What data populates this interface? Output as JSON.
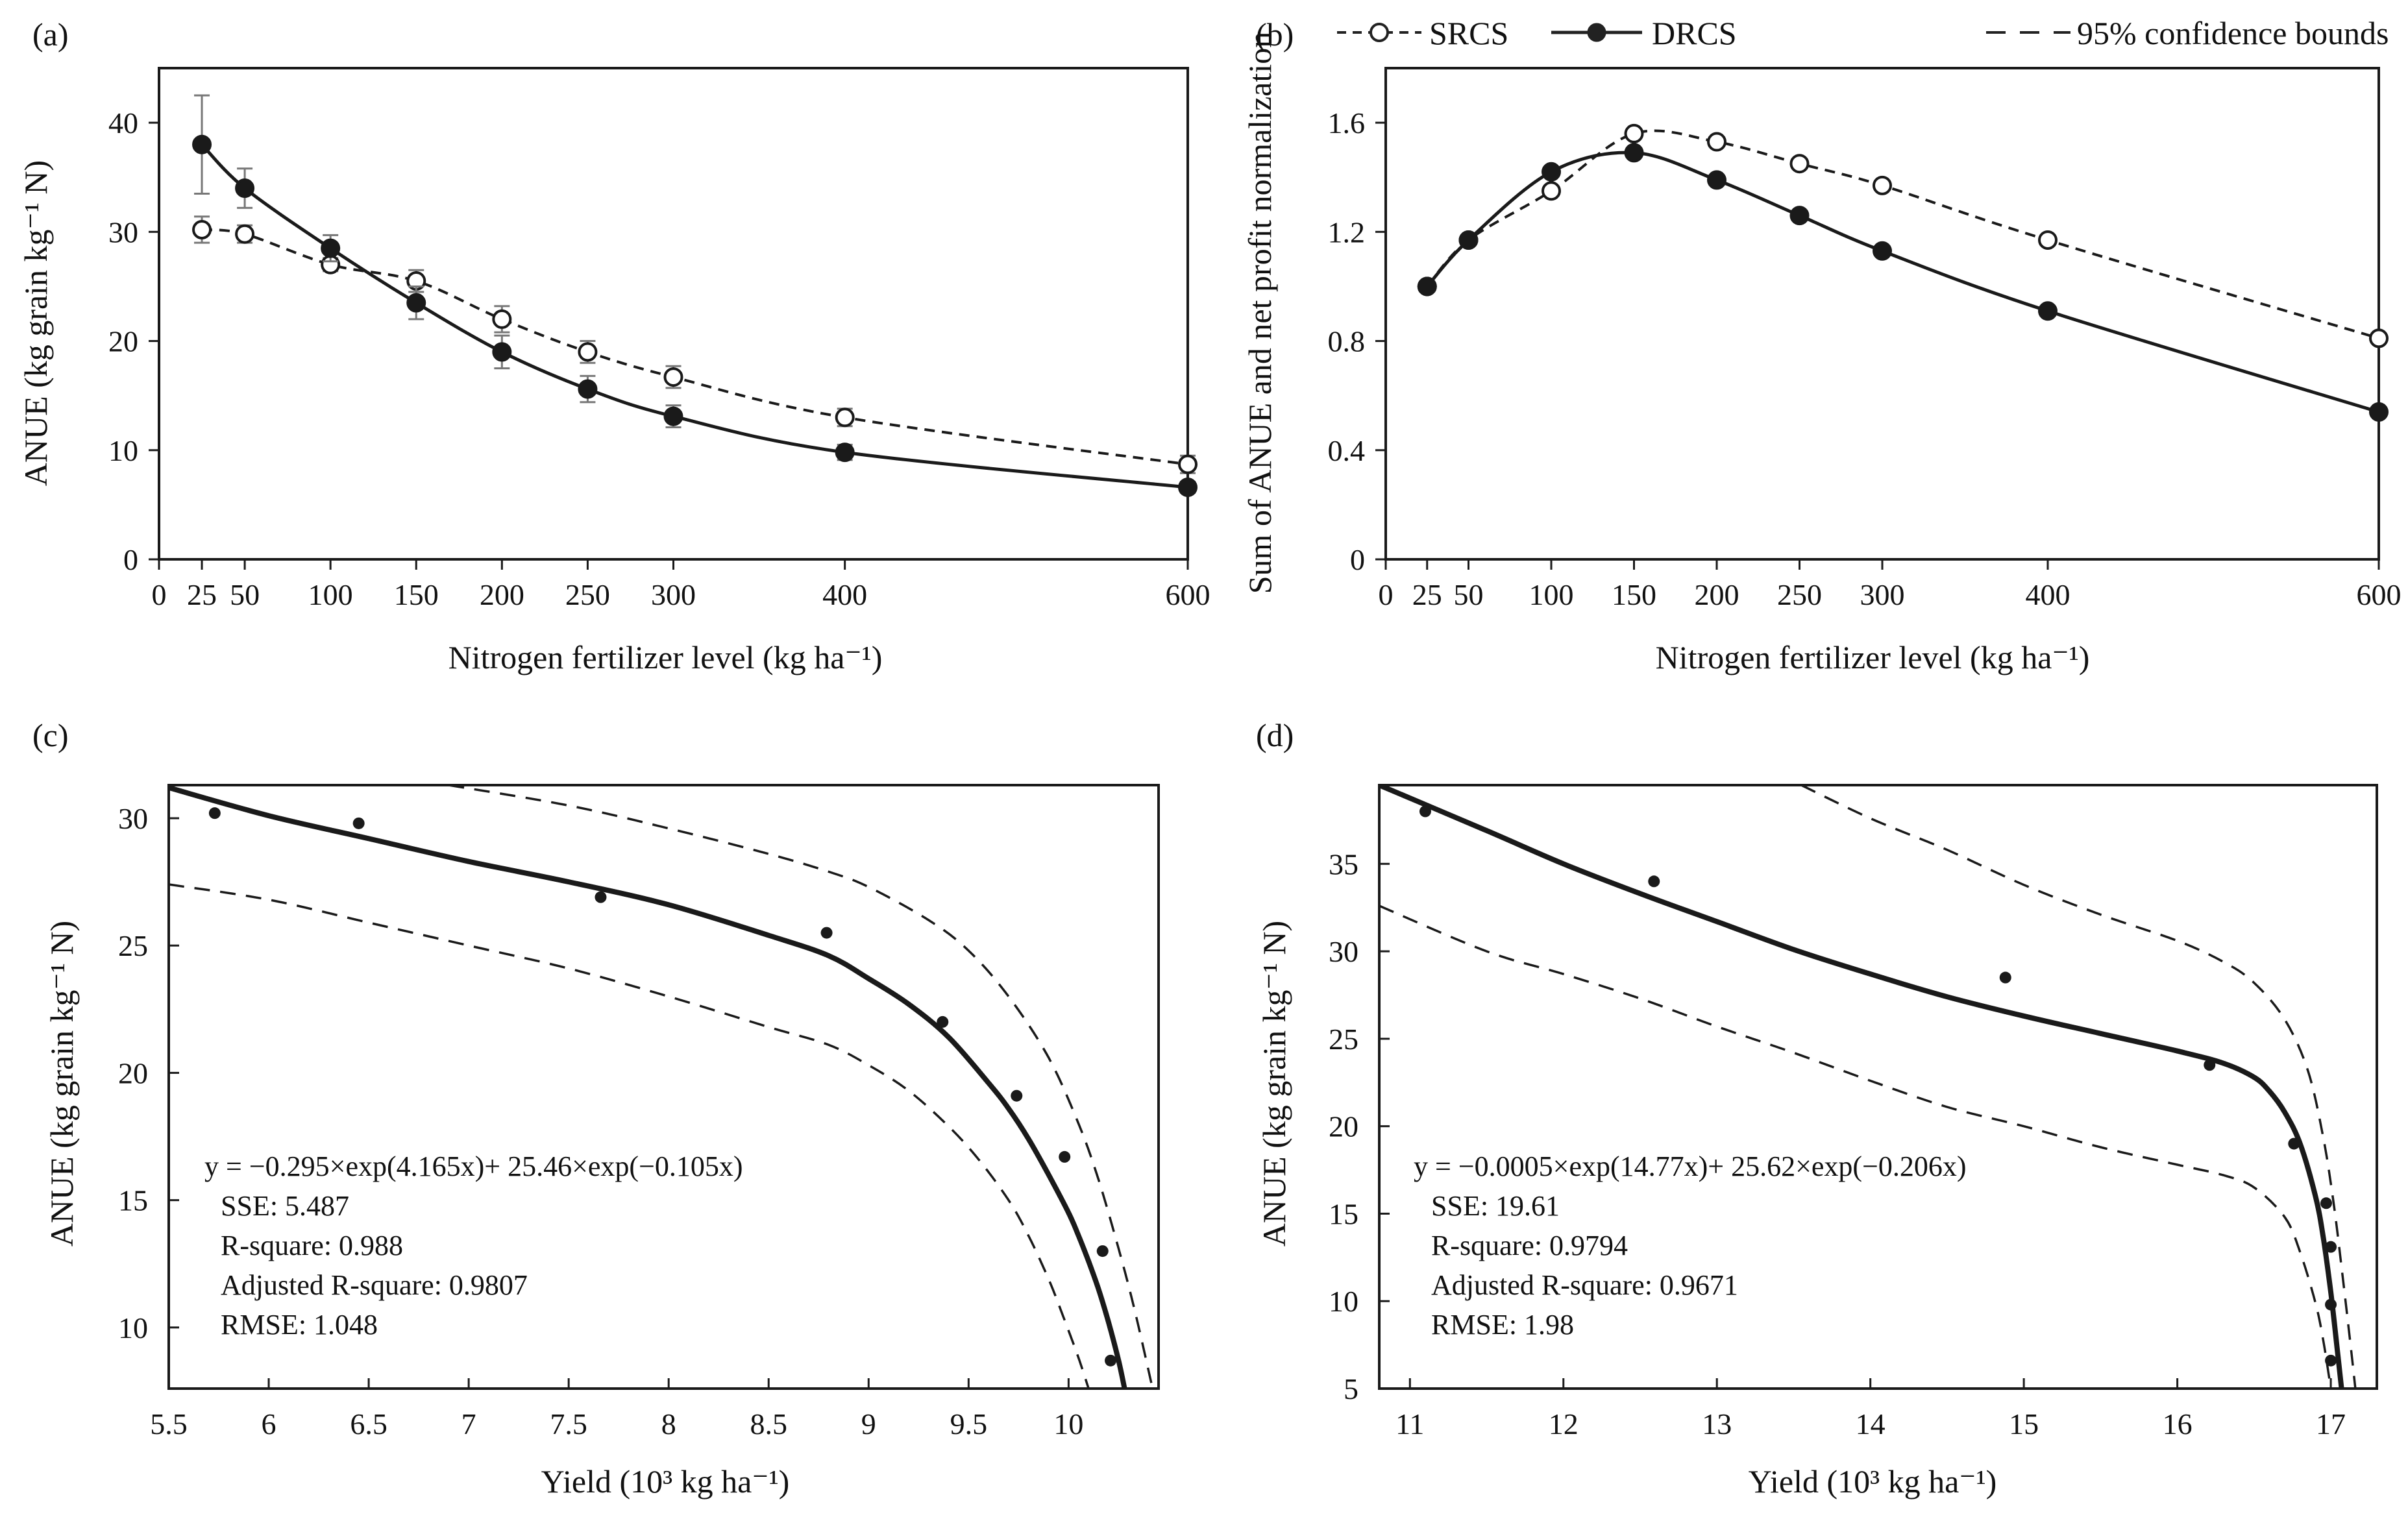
{
  "legend": {
    "srcs": "SRCS",
    "drcs": "DRCS",
    "bounds": "95% confidence bounds"
  },
  "chart_data": [
    {
      "id": "a",
      "panel_label": "(a)",
      "type": "line",
      "xlabel": "Nitrogen fertilizer level (kg ha⁻¹)",
      "ylabel": "ANUE (kg grain kg⁻¹ N)",
      "xlim": [
        0,
        600
      ],
      "ylim": [
        0,
        45
      ],
      "xticks": [
        0,
        25,
        50,
        100,
        150,
        200,
        250,
        300,
        400,
        600
      ],
      "xtick_labels": [
        "0",
        "25",
        "50",
        "100",
        "150",
        "200",
        "250",
        "300",
        "400",
        "600"
      ],
      "yticks": [
        0,
        10,
        20,
        30,
        40
      ],
      "x": [
        25,
        50,
        100,
        150,
        200,
        250,
        300,
        400,
        600
      ],
      "series": [
        {
          "name": "SRCS",
          "marker": "open-circle",
          "dash": true,
          "values": [
            30.2,
            29.8,
            27.0,
            25.5,
            22.0,
            19.0,
            16.7,
            13.0,
            8.7
          ],
          "errors": [
            1.2,
            0.8,
            0.6,
            1.0,
            1.2,
            1.0,
            1.0,
            0.8,
            0.8
          ]
        },
        {
          "name": "DRCS",
          "marker": "filled-circle",
          "dash": false,
          "values": [
            38.0,
            34.0,
            28.5,
            23.5,
            19.0,
            15.6,
            13.1,
            9.8,
            6.6
          ],
          "errors": [
            4.5,
            1.8,
            1.2,
            1.5,
            1.5,
            1.2,
            1.0,
            0.7,
            0.5
          ]
        }
      ]
    },
    {
      "id": "b",
      "panel_label": "(b)",
      "type": "line",
      "xlabel": "Nitrogen fertilizer level (kg  ha⁻¹)",
      "ylabel": "Sum of ANUE and net profit normalization",
      "xlim": [
        0,
        600
      ],
      "ylim": [
        0,
        1.8
      ],
      "xticks": [
        0,
        25,
        50,
        100,
        150,
        200,
        250,
        300,
        400,
        600
      ],
      "xtick_labels": [
        "0",
        "25",
        "50",
        "100",
        "150",
        "200",
        "250",
        "300",
        "400",
        "600"
      ],
      "yticks": [
        0,
        0.4,
        0.8,
        1.2,
        1.6
      ],
      "ytick_labels": [
        "0",
        "0.4",
        "0.8",
        "1.2",
        "1.6"
      ],
      "x": [
        25,
        50,
        100,
        150,
        200,
        250,
        300,
        400,
        600
      ],
      "series": [
        {
          "name": "SRCS",
          "marker": "open-circle",
          "dash": true,
          "values": [
            1.0,
            1.17,
            1.35,
            1.56,
            1.53,
            1.45,
            1.37,
            1.17,
            0.81
          ]
        },
        {
          "name": "DRCS",
          "marker": "filled-circle",
          "dash": false,
          "values": [
            1.0,
            1.17,
            1.42,
            1.49,
            1.39,
            1.26,
            1.13,
            0.91,
            0.54
          ]
        }
      ]
    },
    {
      "id": "c",
      "panel_label": "(c)",
      "type": "scatter",
      "xlabel": "Yield (10³ kg ha⁻¹)",
      "ylabel": "ANUE (kg grain kg⁻¹ N)",
      "xlim": [
        5.5,
        10.45
      ],
      "ylim": [
        7.6,
        31.3
      ],
      "xticks": [
        5.5,
        6,
        6.5,
        7,
        7.5,
        8,
        8.5,
        9,
        9.5,
        10
      ],
      "xtick_labels": [
        "5.5",
        "6",
        "6.5",
        "7",
        "7.5",
        "8",
        "8.5",
        "9",
        "9.5",
        "10"
      ],
      "yticks": [
        10,
        15,
        20,
        25,
        30
      ],
      "points_x": [
        5.73,
        6.45,
        7.66,
        8.79,
        9.37,
        9.74,
        9.98,
        10.17,
        10.21
      ],
      "points_y": [
        30.2,
        29.8,
        26.9,
        25.5,
        22.0,
        19.1,
        16.7,
        13.0,
        8.7
      ],
      "fit": {
        "a": -0.295,
        "b": 4.165,
        "c": 25.46,
        "d": -0.105,
        "x": [
          5.5,
          6.0,
          6.5,
          7.0,
          7.5,
          8.0,
          8.5,
          8.8,
          9.0,
          9.2,
          9.4,
          9.6,
          9.7,
          9.8,
          9.9,
          10.0,
          10.05,
          10.1,
          10.15,
          10.2,
          10.25,
          10.28
        ],
        "y": [
          31.2,
          30.1,
          29.2,
          28.3,
          27.5,
          26.6,
          25.4,
          24.6,
          23.7,
          22.7,
          21.4,
          19.6,
          18.6,
          17.4,
          16.0,
          14.5,
          13.6,
          12.6,
          11.5,
          10.2,
          8.7,
          7.6
        ]
      },
      "lower_bound": {
        "x": [
          5.5,
          6.0,
          6.5,
          7.0,
          7.5,
          8.0,
          8.5,
          8.8,
          9.0,
          9.2,
          9.4,
          9.55,
          9.7,
          9.8,
          9.9,
          9.97,
          10.05,
          10.1
        ],
        "y": [
          27.4,
          26.8,
          25.9,
          25.0,
          24.1,
          23.0,
          21.8,
          21.1,
          20.3,
          19.3,
          17.9,
          16.6,
          15.0,
          13.6,
          11.9,
          10.5,
          8.8,
          7.6
        ]
      },
      "upper_bound": {
        "x": [
          6.9,
          7.5,
          8.0,
          8.5,
          8.8,
          9.0,
          9.3,
          9.5,
          9.7,
          9.9,
          10.05,
          10.15,
          10.25,
          10.33,
          10.42
        ],
        "y": [
          31.3,
          30.5,
          29.6,
          28.6,
          27.9,
          27.3,
          26.0,
          24.8,
          23.0,
          20.6,
          18.0,
          15.8,
          13.1,
          10.7,
          7.6
        ]
      },
      "annotations": [
        "y = −0.295×exp(4.165x)+ 25.46×exp(−0.105x)",
        "SSE: 5.487",
        "R-square: 0.988",
        "Adjusted R-square: 0.9807",
        "RMSE: 1.048"
      ]
    },
    {
      "id": "d",
      "panel_label": "(d)",
      "type": "scatter",
      "xlabel": "Yield (10³ kg ha⁻¹)",
      "ylabel": "ANUE (kg grain kg⁻¹ N)",
      "xlim": [
        10.8,
        17.3
      ],
      "ylim": [
        5,
        39.5
      ],
      "xticks": [
        11,
        12,
        13,
        14,
        15,
        16,
        17
      ],
      "xtick_labels": [
        "11",
        "12",
        "13",
        "14",
        "15",
        "16",
        "17"
      ],
      "yticks": [
        5,
        10,
        15,
        20,
        25,
        30,
        35
      ],
      "points_x": [
        11.1,
        12.59,
        14.88,
        16.21,
        16.76,
        16.97,
        17.0,
        17.0,
        17.0
      ],
      "points_y": [
        38.0,
        34.0,
        28.5,
        23.5,
        19.0,
        15.6,
        13.1,
        9.8,
        6.6
      ],
      "fit": {
        "a": -0.0005,
        "b": 14.77,
        "c": 25.62,
        "d": -0.206,
        "x": [
          10.8,
          11.5,
          12.0,
          12.5,
          13.0,
          13.5,
          14.0,
          14.5,
          15.0,
          15.5,
          16.0,
          16.3,
          16.5,
          16.6,
          16.7,
          16.8,
          16.9,
          16.95,
          17.0,
          17.04,
          17.07
        ],
        "y": [
          39.5,
          36.9,
          35.0,
          33.3,
          31.7,
          30.1,
          28.7,
          27.4,
          26.3,
          25.3,
          24.3,
          23.6,
          22.8,
          22.0,
          20.8,
          19.0,
          16.0,
          13.7,
          10.5,
          7.4,
          5.0
        ]
      },
      "lower_bound": {
        "x": [
          10.8,
          11.5,
          12.0,
          12.5,
          13.0,
          13.5,
          14.0,
          14.5,
          15.0,
          15.5,
          16.0,
          16.3,
          16.5,
          16.7,
          16.8,
          16.9,
          16.95,
          17.0
        ],
        "y": [
          32.6,
          30.0,
          28.7,
          27.3,
          25.7,
          24.2,
          22.6,
          21.1,
          20.0,
          18.8,
          17.8,
          17.2,
          16.5,
          14.8,
          12.8,
          9.9,
          7.8,
          5.0
        ]
      },
      "upper_bound": {
        "x": [
          13.55,
          14.0,
          14.5,
          15.0,
          15.5,
          16.0,
          16.3,
          16.5,
          16.7,
          16.85,
          16.95,
          17.02,
          17.08,
          17.13,
          17.16
        ],
        "y": [
          39.5,
          37.6,
          35.8,
          33.8,
          32.1,
          30.6,
          29.4,
          28.2,
          26.1,
          23.2,
          19.4,
          15.5,
          11.2,
          7.4,
          5.0
        ]
      },
      "annotations": [
        "y = −0.0005×exp(14.77x)+ 25.62×exp(−0.206x)",
        "SSE: 19.61",
        "R-square: 0.9794",
        "Adjusted R-square: 0.9671",
        "RMSE: 1.98"
      ]
    }
  ]
}
